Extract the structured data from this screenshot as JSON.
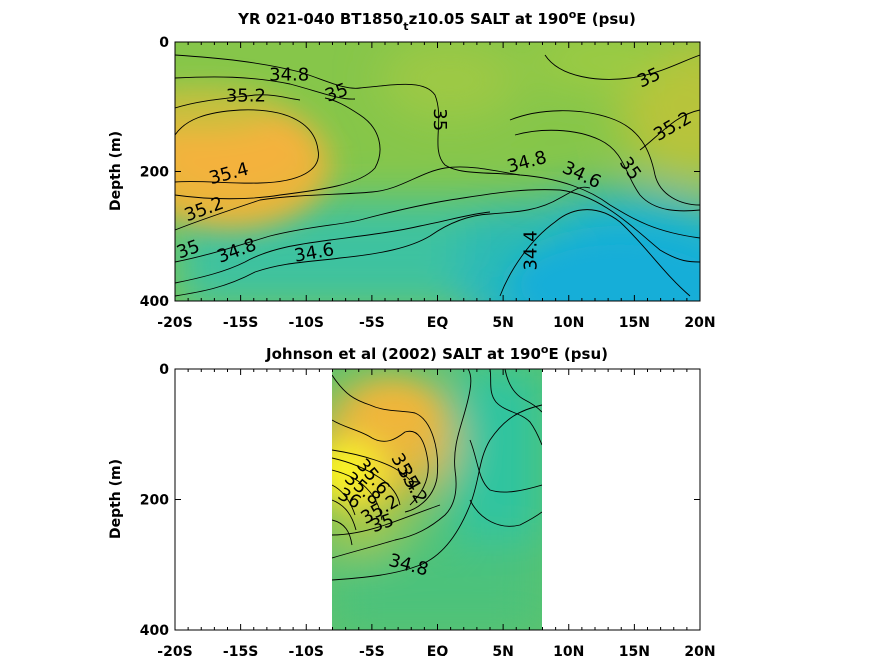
{
  "chart_data": [
    {
      "type": "contour",
      "title_main": "YR 021-040 BT1850",
      "title_sub": "t",
      "title_rest": "z10.05 SALT at 190",
      "title_sup": "o",
      "title_tail": "E (psu)",
      "ylabel": "Depth (m)",
      "x_range": [
        -20,
        20
      ],
      "y_range": [
        0,
        400
      ],
      "y_reversed": true,
      "x_ticks": [
        -20,
        -15,
        -10,
        -5,
        0,
        5,
        10,
        15,
        20
      ],
      "x_tick_labels": [
        "-20S",
        "-15S",
        "-10S",
        "-5S",
        "EQ",
        "5N",
        "10N",
        "15N",
        "20N"
      ],
      "y_ticks": [
        0,
        200,
        400
      ],
      "y_tick_labels": [
        "0",
        "200",
        "400"
      ],
      "data_extent": [
        -20,
        20
      ],
      "contour_labels": [
        {
          "text": "34.8",
          "x": -11.3,
          "y": 50,
          "angle": 0
        },
        {
          "text": "35",
          "x": -7.7,
          "y": 78,
          "angle": -20
        },
        {
          "text": "35.2",
          "x": -14.6,
          "y": 83,
          "angle": 0
        },
        {
          "text": "35",
          "x": 0.2,
          "y": 120,
          "angle": 90
        },
        {
          "text": "35.4",
          "x": -15.9,
          "y": 203,
          "angle": -15
        },
        {
          "text": "35.2",
          "x": -17.8,
          "y": 258,
          "angle": -20
        },
        {
          "text": "35",
          "x": -19.0,
          "y": 320,
          "angle": -20
        },
        {
          "text": "34.8",
          "x": -15.3,
          "y": 322,
          "angle": -20
        },
        {
          "text": "34.6",
          "x": -9.4,
          "y": 325,
          "angle": -10
        },
        {
          "text": "34.8",
          "x": 6.8,
          "y": 185,
          "angle": -15
        },
        {
          "text": "34.6",
          "x": 11.0,
          "y": 205,
          "angle": 25
        },
        {
          "text": "35",
          "x": 14.7,
          "y": 195,
          "angle": 55
        },
        {
          "text": "34.4",
          "x": 7.1,
          "y": 322,
          "angle": -90
        },
        {
          "text": "35",
          "x": 16.1,
          "y": 55,
          "angle": -25
        },
        {
          "text": "35.2",
          "x": 17.9,
          "y": 130,
          "angle": -30
        }
      ]
    },
    {
      "type": "contour",
      "title_main": "Johnson et al (2002) SALT at 190",
      "title_sup": "o",
      "title_tail": "E (psu)",
      "ylabel": "Depth (m)",
      "x_range": [
        -20,
        20
      ],
      "y_range": [
        0,
        400
      ],
      "y_reversed": true,
      "x_ticks": [
        -20,
        -15,
        -10,
        -5,
        0,
        5,
        10,
        15,
        20
      ],
      "x_tick_labels": [
        "-20S",
        "-15S",
        "-10S",
        "-5S",
        "EQ",
        "5N",
        "10N",
        "15N",
        "20N"
      ],
      "y_ticks": [
        0,
        200,
        400
      ],
      "y_tick_labels": [
        "0",
        "200",
        "400"
      ],
      "data_extent": [
        -8,
        8
      ],
      "contour_labels": [
        {
          "text": "35.4",
          "x": -2.4,
          "y": 158,
          "angle": 60
        },
        {
          "text": "35.2",
          "x": -1.9,
          "y": 177,
          "angle": 60
        },
        {
          "text": "35.6",
          "x": -4.9,
          "y": 165,
          "angle": 50
        },
        {
          "text": "35.8",
          "x": -5.7,
          "y": 183,
          "angle": 40
        },
        {
          "text": "36",
          "x": -6.7,
          "y": 198,
          "angle": 30
        },
        {
          "text": "35.2",
          "x": -4.4,
          "y": 215,
          "angle": -30
        },
        {
          "text": "35",
          "x": -4.2,
          "y": 236,
          "angle": -20
        },
        {
          "text": "34.8",
          "x": -2.2,
          "y": 300,
          "angle": 15
        }
      ]
    }
  ]
}
